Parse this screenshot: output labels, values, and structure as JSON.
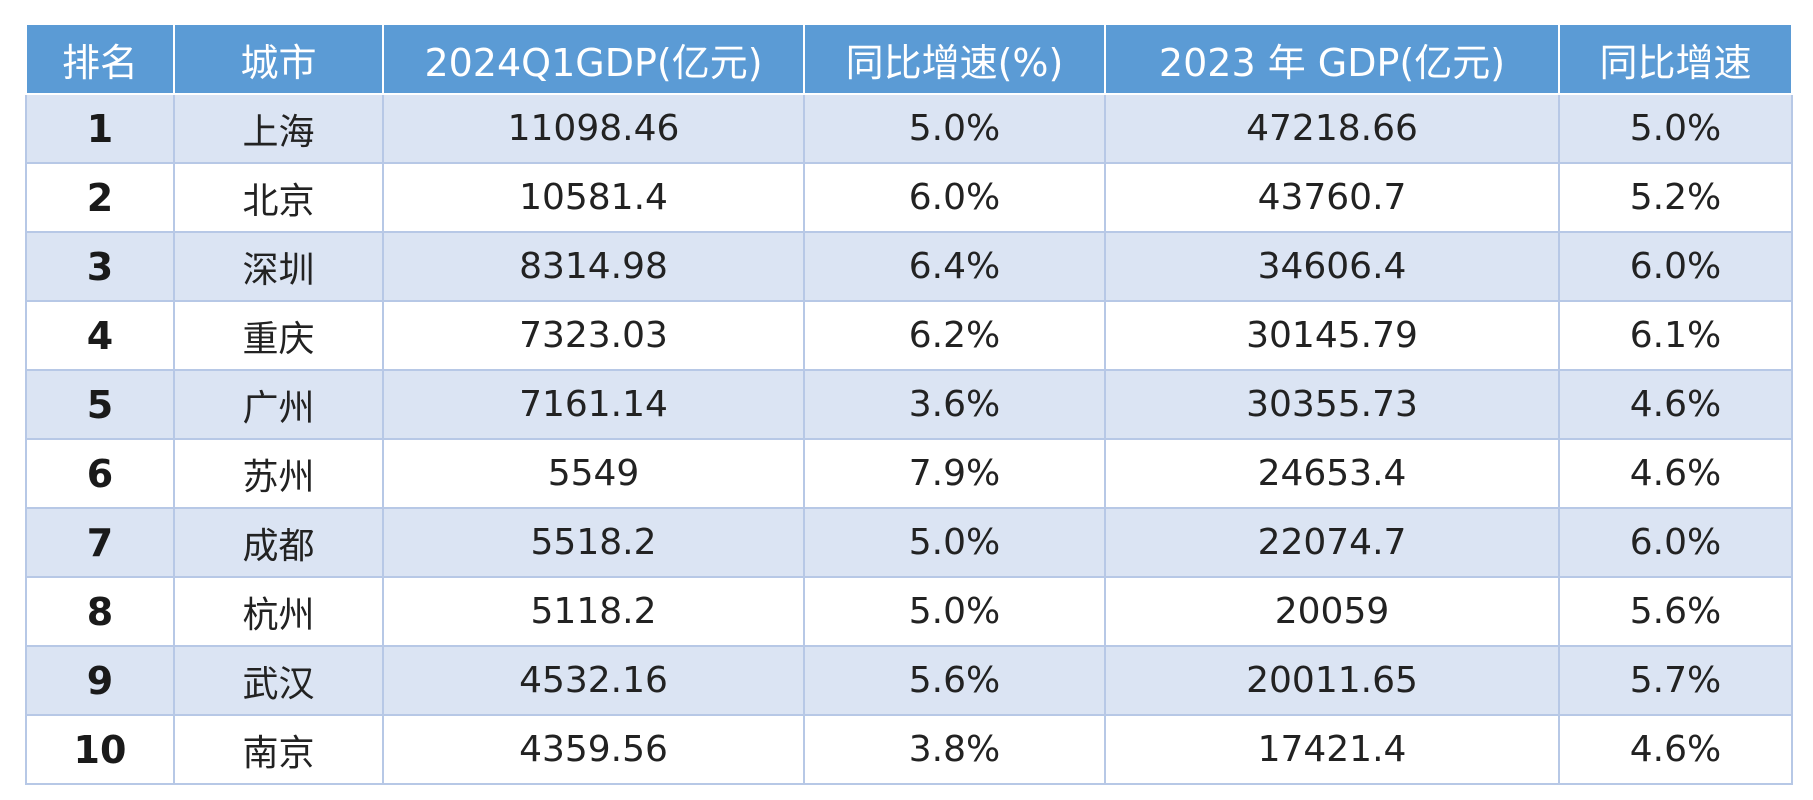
{
  "table": {
    "headers": [
      "排名",
      "城市",
      "2024Q1GDP(亿元)",
      "同比增速(%)",
      "2023 年 GDP(亿元)",
      "同比增速"
    ],
    "rows": [
      {
        "rank": "1",
        "city": "上海",
        "q1_gdp": "11098.46",
        "q1_growth": "5.0%",
        "gdp_2023": "47218.66",
        "growth_2023": "5.0%"
      },
      {
        "rank": "2",
        "city": "北京",
        "q1_gdp": "10581.4",
        "q1_growth": "6.0%",
        "gdp_2023": "43760.7",
        "growth_2023": "5.2%"
      },
      {
        "rank": "3",
        "city": "深圳",
        "q1_gdp": "8314.98",
        "q1_growth": "6.4%",
        "gdp_2023": "34606.4",
        "growth_2023": "6.0%"
      },
      {
        "rank": "4",
        "city": "重庆",
        "q1_gdp": "7323.03",
        "q1_growth": "6.2%",
        "gdp_2023": "30145.79",
        "growth_2023": "6.1%"
      },
      {
        "rank": "5",
        "city": "广州",
        "q1_gdp": "7161.14",
        "q1_growth": "3.6%",
        "gdp_2023": "30355.73",
        "growth_2023": "4.6%"
      },
      {
        "rank": "6",
        "city": "苏州",
        "q1_gdp": "5549",
        "q1_growth": "7.9%",
        "gdp_2023": "24653.4",
        "growth_2023": "4.6%"
      },
      {
        "rank": "7",
        "city": "成都",
        "q1_gdp": "5518.2",
        "q1_growth": "5.0%",
        "gdp_2023": "22074.7",
        "growth_2023": "6.0%"
      },
      {
        "rank": "8",
        "city": "杭州",
        "q1_gdp": "5118.2",
        "q1_growth": "5.0%",
        "gdp_2023": "20059",
        "growth_2023": "5.6%"
      },
      {
        "rank": "9",
        "city": "武汉",
        "q1_gdp": "4532.16",
        "q1_growth": "5.6%",
        "gdp_2023": "20011.65",
        "growth_2023": "5.7%"
      },
      {
        "rank": "10",
        "city": "南京",
        "q1_gdp": "4359.56",
        "q1_growth": "3.8%",
        "gdp_2023": "17421.4",
        "growth_2023": "4.6%"
      }
    ]
  },
  "colors": {
    "header_bg": "#5b9bd5",
    "stripe_bg": "#dbe4f3",
    "border": "#b7c8e6"
  }
}
